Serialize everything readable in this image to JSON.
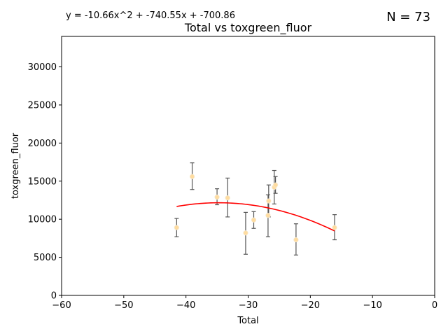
{
  "chart_data": {
    "type": "scatter",
    "title": "Total vs toxgreen_fluor",
    "xlabel": "Total",
    "ylabel": "toxgreen_fluor",
    "equation": "y = -10.66x^2 + -740.55x + -700.86",
    "n_label": "N = 73",
    "xlim": [
      -60,
      0
    ],
    "ylim": [
      0,
      34000
    ],
    "xticks": [
      -60,
      -50,
      -40,
      -30,
      -20,
      -10,
      0
    ],
    "yticks": [
      0,
      5000,
      10000,
      15000,
      20000,
      25000,
      30000
    ],
    "grid": false,
    "series": [
      {
        "points": [
          {
            "x": -41.5,
            "y": 8900,
            "err_low": 7700,
            "err_high": 10100
          },
          {
            "x": -39.0,
            "y": 15600,
            "err_low": 13900,
            "err_high": 17400
          },
          {
            "x": -35.0,
            "y": 12900,
            "err_low": 11900,
            "err_high": 14000
          },
          {
            "x": -33.3,
            "y": 12800,
            "err_low": 10300,
            "err_high": 15400
          },
          {
            "x": -30.4,
            "y": 8200,
            "err_low": 5400,
            "err_high": 10900
          },
          {
            "x": -29.1,
            "y": 9900,
            "err_low": 8800,
            "err_high": 11000
          },
          {
            "x": -26.8,
            "y": 10500,
            "err_low": 7700,
            "err_high": 13200
          },
          {
            "x": -26.7,
            "y": 12400,
            "err_low": 10300,
            "err_high": 14500
          },
          {
            "x": -25.8,
            "y": 14200,
            "err_low": 12000,
            "err_high": 16400
          },
          {
            "x": -25.6,
            "y": 14500,
            "err_low": 13400,
            "err_high": 15600
          },
          {
            "x": -22.3,
            "y": 7300,
            "err_low": 5300,
            "err_high": 9400
          },
          {
            "x": -16.1,
            "y": 8900,
            "err_low": 7300,
            "err_high": 10600
          }
        ]
      }
    ],
    "fit": {
      "a": -10.66,
      "b": -740.55,
      "c": -700.86,
      "x_range": [
        -41.5,
        -16.1
      ]
    },
    "colors": {
      "point": "#ffdca0",
      "point_edge": "#f5e8cc",
      "errorbar": "#555555",
      "fit": "#ff0000"
    }
  }
}
